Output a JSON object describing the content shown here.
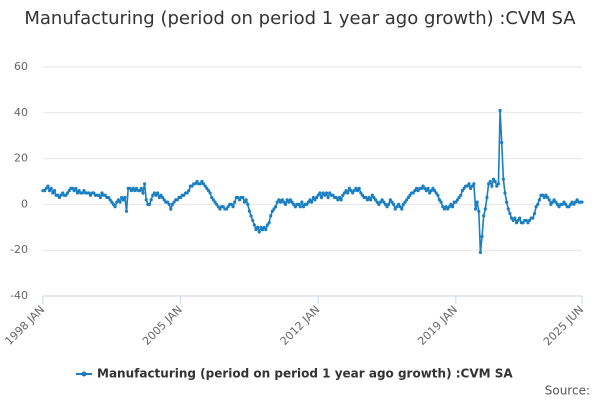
{
  "chart_data": {
    "type": "line",
    "title": "Manufacturing (period on period 1 year ago growth) :CVM SA",
    "source": "Source:",
    "categories": [
      "1998 JAN",
      null,
      null,
      null,
      null,
      null,
      null,
      null,
      null,
      null,
      null,
      null,
      null,
      null,
      null,
      null,
      null,
      null,
      null,
      null,
      null,
      null,
      null,
      null,
      null,
      null,
      null,
      null,
      null,
      null,
      null,
      null,
      null,
      null,
      null,
      null,
      null,
      null,
      null,
      null,
      null,
      null,
      null,
      null,
      null,
      null,
      null,
      null,
      null,
      null,
      null,
      null,
      null,
      null,
      null,
      null,
      null,
      null,
      null,
      null,
      null,
      null,
      null,
      null,
      null,
      null,
      null,
      null,
      null,
      null,
      null,
      null,
      null,
      null,
      null,
      null,
      null,
      null,
      null,
      null,
      null,
      null,
      null,
      null,
      "2005 JAN",
      null,
      null,
      null,
      null,
      null,
      null,
      null,
      null,
      null,
      null,
      null,
      null,
      null,
      null,
      null,
      null,
      null,
      null,
      null,
      null,
      null,
      null,
      null,
      null,
      null,
      null,
      null,
      null,
      null,
      null,
      null,
      null,
      null,
      null,
      null,
      null,
      null,
      null,
      null,
      null,
      null,
      null,
      null,
      null,
      null,
      null,
      null,
      null,
      null,
      null,
      null,
      null,
      null,
      null,
      null,
      null,
      null,
      null,
      null,
      null,
      null,
      null,
      null,
      null,
      null,
      null,
      null,
      null,
      null,
      null,
      null,
      null,
      null,
      null,
      null,
      null,
      null,
      null,
      null,
      null,
      null,
      null,
      null,
      "2012 JAN",
      null,
      null,
      null,
      null,
      null,
      null,
      null,
      null,
      null,
      null,
      null,
      null,
      null,
      null,
      null,
      null,
      null,
      null,
      null,
      null,
      null,
      null,
      null,
      null,
      null,
      null,
      null,
      null,
      null,
      null,
      null,
      null,
      null,
      null,
      null,
      null,
      null,
      null,
      null,
      null,
      null,
      null,
      null,
      null,
      null,
      null,
      null,
      null,
      null,
      null,
      null,
      null,
      null,
      null,
      null,
      null,
      null,
      null,
      null,
      null,
      null,
      null,
      null,
      null,
      null,
      null,
      null,
      null,
      null,
      null,
      null,
      null,
      null,
      null,
      null,
      null,
      null,
      null,
      null,
      null,
      null,
      null,
      null,
      "2019 JAN",
      null,
      null,
      null,
      null,
      null,
      null,
      null,
      null,
      null,
      null,
      null,
      null,
      null,
      null,
      null,
      null,
      null,
      null,
      null,
      null,
      null,
      null,
      null,
      null,
      null,
      null,
      null,
      null,
      null,
      null,
      null,
      null,
      null,
      null,
      null,
      null,
      null,
      null,
      null,
      null,
      null,
      null,
      null,
      null,
      null,
      null,
      null,
      null,
      null,
      null,
      null,
      null,
      null,
      null,
      null,
      null,
      null,
      null,
      null,
      null,
      null,
      null,
      null,
      null,
      null,
      null,
      null,
      null,
      null,
      null,
      null,
      null,
      null,
      null,
      null,
      null,
      "2025 JUN"
    ],
    "series": [
      {
        "name": "Manufacturing (period on period 1 year ago growth) :CVM SA",
        "color": "#1a7ec2",
        "values": [
          6,
          6,
          7,
          8,
          6,
          7,
          5,
          6,
          4,
          4,
          3,
          4,
          5,
          4,
          4,
          5,
          6,
          7,
          7,
          6,
          7,
          5,
          6,
          5,
          5,
          6,
          5,
          5,
          5,
          4,
          5,
          5,
          4,
          4,
          4,
          3,
          5,
          4,
          4,
          3,
          3,
          2,
          1,
          0,
          -1,
          1,
          2,
          1,
          3,
          2,
          3,
          -3,
          7,
          7,
          6,
          7,
          6,
          7,
          6,
          6,
          7,
          5,
          9,
          2,
          0,
          0,
          2,
          4,
          5,
          4,
          5,
          3,
          4,
          3,
          2,
          1,
          1,
          0,
          -2,
          0,
          1,
          2,
          2,
          3,
          3,
          4,
          4,
          5,
          5,
          6,
          8,
          8,
          9,
          9,
          10,
          9,
          9,
          10,
          9,
          8,
          7,
          6,
          5,
          3,
          2,
          1,
          0,
          -1,
          -2,
          -1,
          -1,
          -2,
          -2,
          -1,
          0,
          0,
          -1,
          1,
          3,
          3,
          2,
          3,
          3,
          1,
          2,
          0,
          -3,
          -5,
          -7,
          -9,
          -11,
          -10,
          -12,
          -10,
          -11,
          -10,
          -11,
          -9,
          -8,
          -5,
          -3,
          -2,
          -1,
          1,
          2,
          1,
          2,
          1,
          0,
          2,
          1,
          2,
          1,
          0,
          -1,
          0,
          0,
          -1,
          1,
          -1,
          0,
          0,
          1,
          2,
          1,
          3,
          2,
          3,
          4,
          5,
          3,
          5,
          4,
          5,
          3,
          5,
          4,
          4,
          3,
          3,
          2,
          3,
          2,
          4,
          5,
          6,
          5,
          7,
          6,
          5,
          6,
          7,
          6,
          7,
          5,
          4,
          3,
          3,
          2,
          3,
          2,
          4,
          3,
          2,
          1,
          0,
          1,
          2,
          1,
          0,
          -1,
          0,
          2,
          1,
          0,
          -2,
          -1,
          0,
          -1,
          -2,
          0,
          1,
          2,
          3,
          4,
          5,
          5,
          6,
          7,
          6,
          7,
          7,
          8,
          7,
          6,
          7,
          5,
          6,
          7,
          6,
          5,
          4,
          2,
          1,
          -1,
          -2,
          -1,
          -2,
          -1,
          0,
          -1,
          1,
          1,
          2,
          3,
          4,
          6,
          7,
          8,
          8,
          9,
          7,
          8,
          9,
          -2,
          1,
          -3,
          -21,
          -14,
          -5,
          -2,
          3,
          9,
          10,
          8,
          11,
          10,
          8,
          9,
          41,
          27,
          11,
          5,
          1,
          -2,
          -4,
          -6,
          -7,
          -6,
          -8,
          -7,
          -6,
          -8,
          -8,
          -7,
          -7,
          -8,
          -7,
          -6,
          -6,
          -4,
          -1,
          0,
          2,
          4,
          4,
          3,
          4,
          3,
          2,
          0,
          1,
          2,
          1,
          0,
          -1,
          0,
          0,
          1,
          0,
          -1,
          -1,
          0,
          1,
          0,
          1,
          2,
          1,
          1,
          1
        ]
      }
    ],
    "ylim": [
      -40,
      60
    ],
    "yticks": [
      -40,
      -20,
      0,
      20,
      40,
      60
    ],
    "grid": true
  }
}
